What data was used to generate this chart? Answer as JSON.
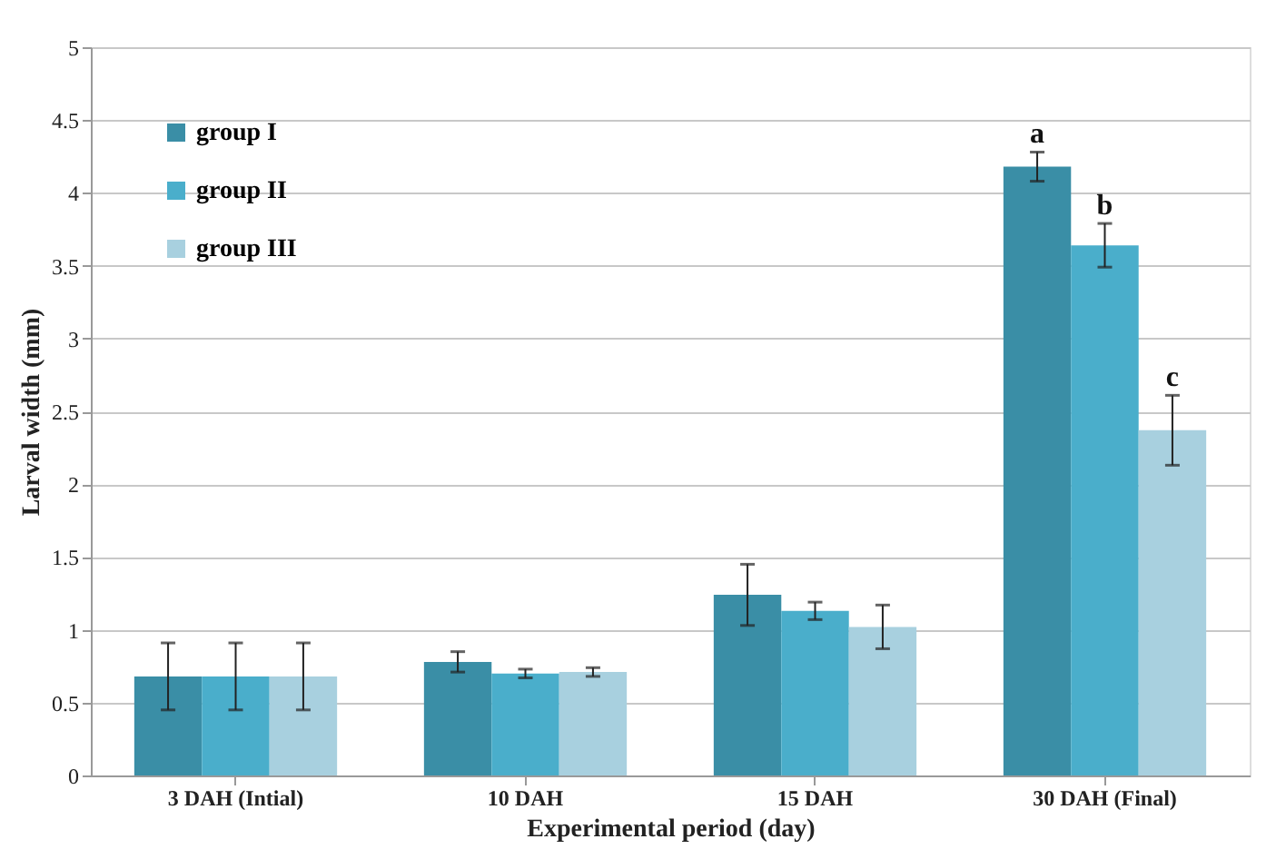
{
  "chart_data": {
    "type": "bar",
    "xlabel": "Experimental  period (day)",
    "ylabel": "Larval width (mm)",
    "categories": [
      "3 DAH (Intial)",
      "10 DAH",
      "15 DAH",
      "30 DAH (Final)"
    ],
    "series": [
      {
        "name": "group I",
        "color": "#3a8ea6",
        "values": [
          0.68,
          0.78,
          1.24,
          4.18
        ],
        "errors": [
          0.23,
          0.07,
          0.21,
          0.1
        ]
      },
      {
        "name": "group II",
        "color": "#4aaecb",
        "values": [
          0.68,
          0.7,
          1.13,
          3.64
        ],
        "errors": [
          0.23,
          0.03,
          0.06,
          0.15
        ]
      },
      {
        "name": "group III",
        "color": "#a8d0df",
        "values": [
          0.68,
          0.71,
          1.02,
          2.37
        ],
        "errors": [
          0.23,
          0.03,
          0.15,
          0.24
        ]
      }
    ],
    "annotations": [
      "a",
      "b",
      "c"
    ],
    "ylim": [
      0,
      5
    ],
    "yticks": [
      0,
      0.5,
      1,
      1.5,
      2,
      2.5,
      3,
      3.5,
      4,
      4.5,
      5
    ],
    "grid": "y",
    "legend": "top left"
  }
}
